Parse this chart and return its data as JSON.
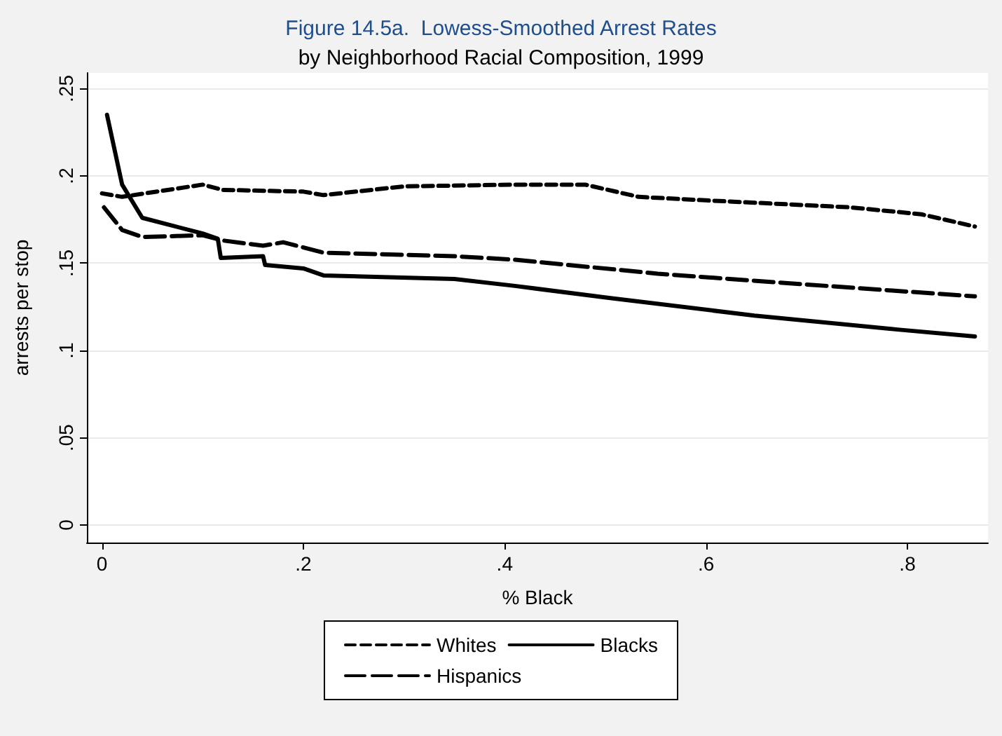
{
  "chart_data": {
    "type": "line",
    "title": "Figure 14.5a.  Lowess-Smoothed Arrest Rates",
    "subtitle": "by Neighborhood Racial Composition, 1999",
    "xlabel": "% Black",
    "ylabel": "arrests per stop",
    "series": [
      {
        "name": "Whites",
        "color": "#000000",
        "line_style": "dashed",
        "x": [
          0.0,
          0.02,
          0.1,
          0.12,
          0.2,
          0.22,
          0.3,
          0.41,
          0.48,
          0.533,
          0.6,
          0.743,
          0.814,
          0.867
        ],
        "values": [
          0.19,
          0.188,
          0.195,
          0.192,
          0.191,
          0.189,
          0.194,
          0.195,
          0.195,
          0.188,
          0.186,
          0.182,
          0.178,
          0.171
        ]
      },
      {
        "name": "Blacks",
        "color": "#000000",
        "line_style": "solid",
        "x": [
          0.005,
          0.02,
          0.04,
          0.1,
          0.115,
          0.118,
          0.16,
          0.162,
          0.2,
          0.22,
          0.35,
          0.41,
          0.505,
          0.648,
          0.79,
          0.867
        ],
        "values": [
          0.235,
          0.195,
          0.176,
          0.167,
          0.164,
          0.153,
          0.154,
          0.149,
          0.147,
          0.143,
          0.141,
          0.137,
          0.13,
          0.12,
          0.112,
          0.108
        ]
      },
      {
        "name": "Hispanics",
        "color": "#000000",
        "line_style": "dashed",
        "x": [
          0.002,
          0.02,
          0.04,
          0.1,
          0.12,
          0.16,
          0.18,
          0.22,
          0.35,
          0.41,
          0.552,
          0.695,
          0.867
        ],
        "values": [
          0.182,
          0.169,
          0.165,
          0.166,
          0.163,
          0.16,
          0.162,
          0.156,
          0.154,
          0.152,
          0.144,
          0.138,
          0.131
        ]
      }
    ],
    "xlim": [
      -0.015,
      0.88
    ],
    "xticks": [
      0,
      {
        "value": 0.2,
        "label": ".2"
      },
      {
        "value": 0.4,
        "label": ".4"
      },
      {
        "value": 0.6,
        "label": ".6"
      },
      {
        "value": 0.8,
        "label": ".8"
      }
    ],
    "ylim": [
      -0.01,
      0.259
    ],
    "yticks": [
      0,
      {
        "value": 0.05,
        "label": ".05"
      },
      {
        "value": 0.1,
        "label": ".1"
      },
      {
        "value": 0.15,
        "label": ".15"
      },
      {
        "value": 0.2,
        "label": ".2"
      },
      {
        "value": 0.25,
        "label": ".25"
      }
    ],
    "grid": "y",
    "legend": "bottom",
    "marker": "none"
  }
}
